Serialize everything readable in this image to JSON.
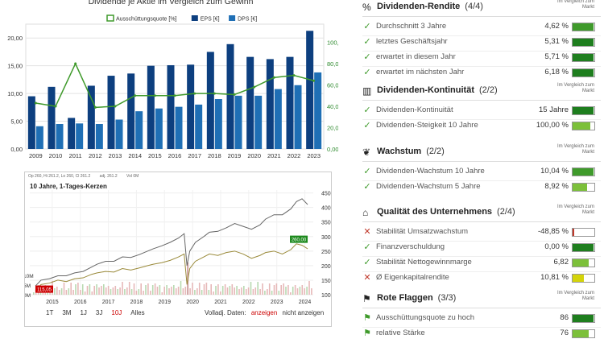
{
  "chart_data": [
    {
      "type": "bar",
      "title": "Dividende je Aktie im Vergleich zum Gewinn",
      "categories": [
        "2009",
        "2010",
        "2011",
        "2012",
        "2013",
        "2014",
        "2015",
        "2016",
        "2017",
        "2018",
        "2019",
        "2020",
        "2021",
        "2022",
        "2023"
      ],
      "series": [
        {
          "name": "EPS [€]",
          "kind": "bar",
          "axis": "left",
          "color": "#0d3f7f",
          "values": [
            9.5,
            11.2,
            5.6,
            11.4,
            13.2,
            13.6,
            15.0,
            15.1,
            15.2,
            17.5,
            18.9,
            16.6,
            16.2,
            16.6,
            21.3
          ]
        },
        {
          "name": "DPS [€]",
          "kind": "bar",
          "axis": "left",
          "color": "#1f6fb5",
          "values": [
            4.1,
            4.5,
            4.6,
            4.5,
            5.3,
            6.8,
            7.3,
            7.6,
            8.0,
            9.0,
            9.6,
            9.6,
            10.8,
            11.5,
            13.8
          ]
        },
        {
          "name": "Ausschüttungsquote [%]",
          "kind": "line",
          "axis": "right",
          "color": "#3f9a2b",
          "values": [
            43,
            40,
            80,
            39,
            40,
            50,
            50,
            50,
            52,
            52,
            51,
            58,
            67,
            69,
            64
          ]
        }
      ],
      "ylim_left": [
        0,
        22.5
      ],
      "yticks_left": [
        "0,00",
        "5,00",
        "10,00",
        "15,00",
        "20,00"
      ],
      "ylim_right": [
        0,
        117
      ],
      "yticks_right": [
        "0,00",
        "20,00",
        "40,00",
        "60,00",
        "80,00",
        "100,00"
      ],
      "legend_position": "top",
      "grid": true
    },
    {
      "type": "line",
      "subtitle": "10 Jahre, 1-Tages-Kerzen",
      "legend": [
        "Op 260, Hi 261.2, Lo 260, Cl 261.2",
        "adj. 261.2",
        "Vol 0M"
      ],
      "x_ticks": [
        "2015",
        "2016",
        "2017",
        "2018",
        "2019",
        "2020",
        "2021",
        "2022",
        "2023",
        "2024"
      ],
      "y_ticks_right": [
        "100",
        "150",
        "200",
        "250",
        "300",
        "350",
        "400",
        "450"
      ],
      "y_ticks_left": [
        "0M",
        "5M",
        "10M"
      ],
      "ylim": [
        100,
        460
      ],
      "series": [
        {
          "name": "Kurs",
          "color": "#9a8a3a",
          "x": [
            2014.8,
            2015.0,
            2015.3,
            2015.6,
            2015.9,
            2016.2,
            2016.5,
            2016.8,
            2017.0,
            2017.3,
            2017.6,
            2017.9,
            2018.2,
            2018.5,
            2018.8,
            2019.0,
            2019.3,
            2019.6,
            2019.9,
            2020.1,
            2020.2,
            2020.3,
            2020.5,
            2020.8,
            2021.0,
            2021.3,
            2021.6,
            2021.9,
            2022.2,
            2022.5,
            2022.8,
            2023.0,
            2023.3,
            2023.6,
            2023.9,
            2024.1,
            2024.3,
            2024.5
          ],
          "values": [
            115,
            135,
            140,
            150,
            145,
            155,
            158,
            170,
            175,
            180,
            178,
            190,
            185,
            192,
            200,
            205,
            210,
            218,
            230,
            240,
            135,
            190,
            215,
            230,
            240,
            235,
            245,
            250,
            240,
            225,
            235,
            245,
            250,
            240,
            255,
            275,
            270,
            258
          ]
        },
        {
          "name": "adj.",
          "color": "#666666",
          "x": [
            2014.8,
            2015.0,
            2015.3,
            2015.6,
            2015.9,
            2016.2,
            2016.5,
            2016.8,
            2017.0,
            2017.3,
            2017.6,
            2017.9,
            2018.2,
            2018.5,
            2018.8,
            2019.0,
            2019.3,
            2019.6,
            2019.9,
            2020.1,
            2020.2,
            2020.3,
            2020.5,
            2020.8,
            2021.0,
            2021.3,
            2021.6,
            2021.9,
            2022.2,
            2022.5,
            2022.8,
            2023.0,
            2023.3,
            2023.6,
            2023.9,
            2024.1,
            2024.3,
            2024.5
          ],
          "values": [
            130,
            150,
            155,
            165,
            165,
            175,
            180,
            195,
            205,
            215,
            215,
            230,
            228,
            238,
            250,
            258,
            268,
            280,
            295,
            310,
            200,
            250,
            280,
            300,
            315,
            318,
            330,
            345,
            335,
            325,
            340,
            360,
            375,
            375,
            395,
            420,
            430,
            410
          ]
        }
      ],
      "price_labels": {
        "start": "115,05",
        "end": "260,00"
      }
    }
  ],
  "stock_controls": {
    "ranges": [
      "1T",
      "3M",
      "1J",
      "3J",
      "10J",
      "Alles"
    ],
    "active_range": "10J",
    "adjust_label": "Volladj. Daten:",
    "show_label": "anzeigen",
    "hide_label": "nicht anzeigen"
  },
  "compare_label": "Im Vergleich zum Markt",
  "sections": [
    {
      "icon": "percent-icon",
      "glyph": "%",
      "title": "Dividenden-Rendite",
      "count": "(4/4)",
      "rows": [
        {
          "status": "ok",
          "label": "Durchschnitt 3 Jahre",
          "value": "4,62 %",
          "fill": 0.95,
          "color": "#3f9a2b"
        },
        {
          "status": "ok",
          "label": "letztes Geschäftsjahr",
          "value": "5,31 %",
          "fill": 0.95,
          "color": "#1e7e1e"
        },
        {
          "status": "ok",
          "label": "erwartet in diesem Jahr",
          "value": "5,71 %",
          "fill": 0.95,
          "color": "#1e7e1e"
        },
        {
          "status": "ok",
          "label": "erwartet im nächsten Jahr",
          "value": "6,18 %",
          "fill": 0.95,
          "color": "#1e7e1e"
        }
      ]
    },
    {
      "icon": "bar-chart-icon",
      "glyph": "▥",
      "title": "Dividenden-Kontinuität",
      "count": "(2/2)",
      "rows": [
        {
          "status": "ok",
          "label": "Dividenden-Kontinuität",
          "value": "15 Jahre",
          "fill": 0.95,
          "color": "#1e7e1e"
        },
        {
          "status": "ok",
          "label": "Dividenden-Steigkeit 10 Jahre",
          "value": "100,00 %",
          "fill": 0.8,
          "color": "#7cc03a"
        }
      ]
    },
    {
      "icon": "sprout-icon",
      "glyph": "❦",
      "title": "Wachstum",
      "count": "(2/2)",
      "rows": [
        {
          "status": "ok",
          "label": "Dividenden-Wachstum 10 Jahre",
          "value": "10,04 %",
          "fill": 0.95,
          "color": "#3f9a2b"
        },
        {
          "status": "ok",
          "label": "Dividenden-Wachstum 5 Jahre",
          "value": "8,92 %",
          "fill": 0.65,
          "color": "#7cc03a"
        }
      ]
    },
    {
      "icon": "bank-icon",
      "glyph": "⌂",
      "title": "Qualität des Unternehmens",
      "count": "(2/4)",
      "rows": [
        {
          "status": "bad",
          "label": "Stabilität Umsatzwachstum",
          "value": "-48,85 %",
          "fill": 0.06,
          "color": "#c0392b"
        },
        {
          "status": "ok",
          "label": "Finanzverschuldung",
          "value": "0,00 %",
          "fill": 0.95,
          "color": "#1e7e1e"
        },
        {
          "status": "ok",
          "label": "Stabilität Nettogewinnmarge",
          "value": "6,82",
          "fill": 0.75,
          "color": "#7cc03a"
        },
        {
          "status": "bad",
          "label": "Ø Eigenkapitalrendite",
          "value": "10,81 %",
          "fill": 0.5,
          "color": "#d4d40a"
        }
      ]
    },
    {
      "icon": "flag-icon",
      "glyph": "⚑",
      "title": "Rote Flaggen",
      "count": "(3/3)",
      "rows": [
        {
          "status": "flag",
          "label": "Ausschüttungsquote zu hoch",
          "value": "86",
          "fill": 0.95,
          "color": "#1e7e1e"
        },
        {
          "status": "flag",
          "label": "relative Stärke",
          "value": "76",
          "fill": 0.75,
          "color": "#7cc03a"
        },
        {
          "status": "flag",
          "label": "",
          "value": "",
          "fill": 0,
          "color": "#7cc03a"
        }
      ]
    }
  ]
}
